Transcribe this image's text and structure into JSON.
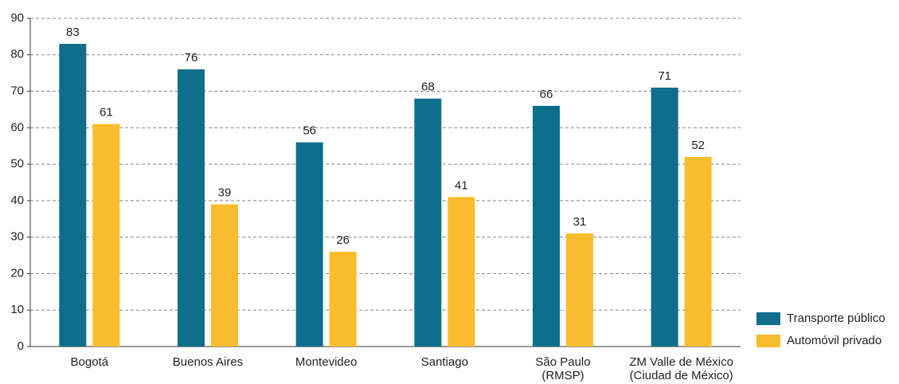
{
  "chart_data": {
    "type": "bar",
    "categories": [
      [
        "Bogotá"
      ],
      [
        "Buenos Aires"
      ],
      [
        "Montevideo"
      ],
      [
        "Santiago"
      ],
      [
        "São Paulo",
        "(RMSP)"
      ],
      [
        "ZM Valle de México",
        "(Ciudad de México)"
      ]
    ],
    "series": [
      {
        "name": "Transporte público",
        "color": "#0f6e8c",
        "values": [
          83,
          76,
          56,
          68,
          66,
          71
        ]
      },
      {
        "name": "Automóvil privado",
        "color": "#f9bc2c",
        "values": [
          61,
          39,
          26,
          41,
          31,
          52
        ]
      }
    ],
    "ylim": [
      0,
      90
    ],
    "yticks": [
      0,
      10,
      20,
      30,
      40,
      50,
      60,
      70,
      80,
      90
    ],
    "grid": true,
    "legend": "bottom-right"
  }
}
